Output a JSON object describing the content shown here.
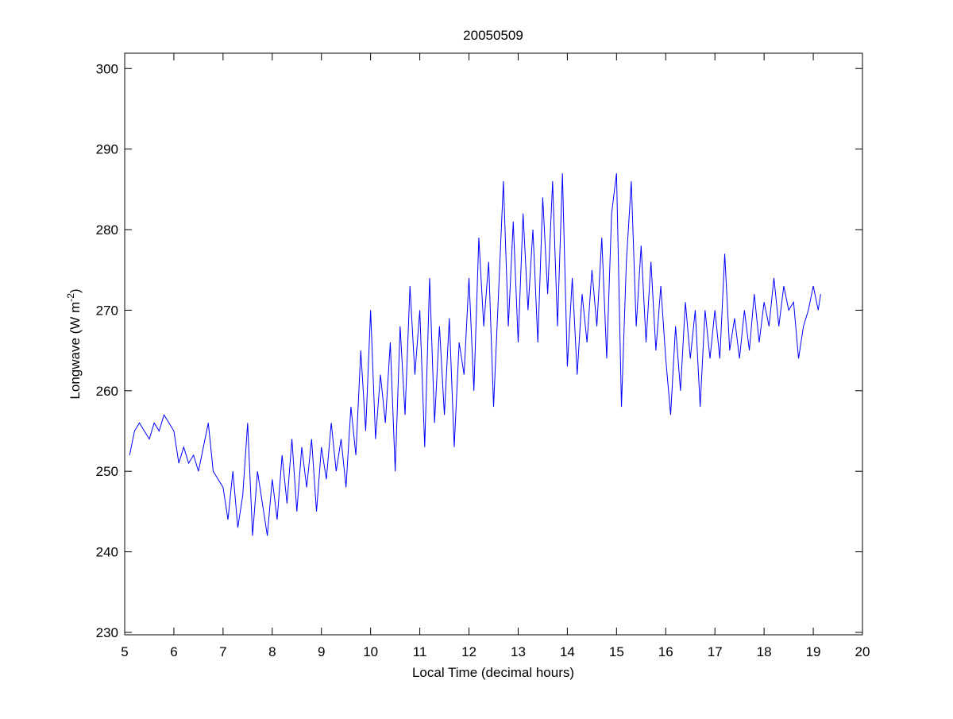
{
  "chart_data": {
    "type": "line",
    "title": "20050509",
    "xlabel": "Local Time (decimal hours)",
    "ylabel": {
      "text": "Longwave (W m",
      "sup": "-2",
      "end": ")"
    },
    "x": [
      5.1,
      5.2,
      5.3,
      5.4,
      5.5,
      5.6,
      5.7,
      5.8,
      5.9,
      6.0,
      6.1,
      6.2,
      6.3,
      6.4,
      6.5,
      6.6,
      6.7,
      6.8,
      6.9,
      7.0,
      7.1,
      7.2,
      7.3,
      7.4,
      7.5,
      7.6,
      7.7,
      7.8,
      7.9,
      8.0,
      8.1,
      8.2,
      8.3,
      8.4,
      8.5,
      8.6,
      8.7,
      8.8,
      8.9,
      9.0,
      9.1,
      9.2,
      9.3,
      9.4,
      9.5,
      9.6,
      9.7,
      9.8,
      9.9,
      10.0,
      10.1,
      10.2,
      10.3,
      10.4,
      10.5,
      10.6,
      10.7,
      10.8,
      10.9,
      11.0,
      11.1,
      11.2,
      11.3,
      11.4,
      11.5,
      11.6,
      11.7,
      11.8,
      11.9,
      12.0,
      12.1,
      12.2,
      12.3,
      12.4,
      12.5,
      12.6,
      12.7,
      12.8,
      12.9,
      13.0,
      13.1,
      13.2,
      13.3,
      13.4,
      13.5,
      13.6,
      13.7,
      13.8,
      13.9,
      14.0,
      14.1,
      14.2,
      14.3,
      14.4,
      14.5,
      14.6,
      14.7,
      14.8,
      14.9,
      15.0,
      15.1,
      15.2,
      15.3,
      15.4,
      15.5,
      15.6,
      15.7,
      15.8,
      15.9,
      16.0,
      16.1,
      16.2,
      16.3,
      16.4,
      16.5,
      16.6,
      16.7,
      16.8,
      16.9,
      17.0,
      17.1,
      17.2,
      17.3,
      17.4,
      17.5,
      17.6,
      17.7,
      17.8,
      17.9,
      18.0,
      18.1,
      18.2,
      18.3,
      18.4,
      18.5,
      18.6,
      18.7,
      18.8,
      18.9,
      19.0,
      19.1,
      19.15
    ],
    "series": [
      {
        "color": "#0000ff",
        "values": [
          252,
          255,
          256,
          255,
          254,
          256,
          255,
          257,
          256,
          255,
          251,
          253,
          251,
          252,
          250,
          253,
          256,
          250,
          249,
          248,
          244,
          250,
          243,
          247,
          256,
          242,
          250,
          246,
          242,
          249,
          244,
          252,
          246,
          254,
          245,
          253,
          248,
          254,
          245,
          253,
          249,
          256,
          250,
          254,
          248,
          258,
          252,
          265,
          255,
          270,
          254,
          262,
          256,
          266,
          250,
          268,
          257,
          273,
          262,
          270,
          253,
          274,
          256,
          268,
          257,
          269,
          253,
          266,
          262,
          274,
          260,
          279,
          268,
          276,
          258,
          272,
          286,
          268,
          281,
          266,
          282,
          270,
          280,
          266,
          284,
          272,
          286,
          268,
          287,
          263,
          274,
          262,
          272,
          266,
          275,
          268,
          279,
          264,
          282,
          287,
          258,
          276,
          286,
          268,
          278,
          266,
          276,
          265,
          273,
          264,
          257,
          268,
          260,
          271,
          264,
          270,
          258,
          270,
          264,
          270,
          264,
          277,
          265,
          269,
          264,
          270,
          265,
          272,
          266,
          271,
          268,
          274,
          268,
          273,
          270,
          271,
          264,
          268,
          270,
          273,
          270,
          272
        ]
      }
    ],
    "xlim": [
      5,
      20
    ],
    "xticks": [
      5,
      6,
      7,
      8,
      9,
      10,
      11,
      12,
      13,
      14,
      15,
      16,
      17,
      18,
      19,
      20
    ],
    "ylim": [
      229.7,
      301.9
    ],
    "yticks": [
      230,
      240,
      250,
      260,
      270,
      280,
      290,
      300
    ]
  }
}
